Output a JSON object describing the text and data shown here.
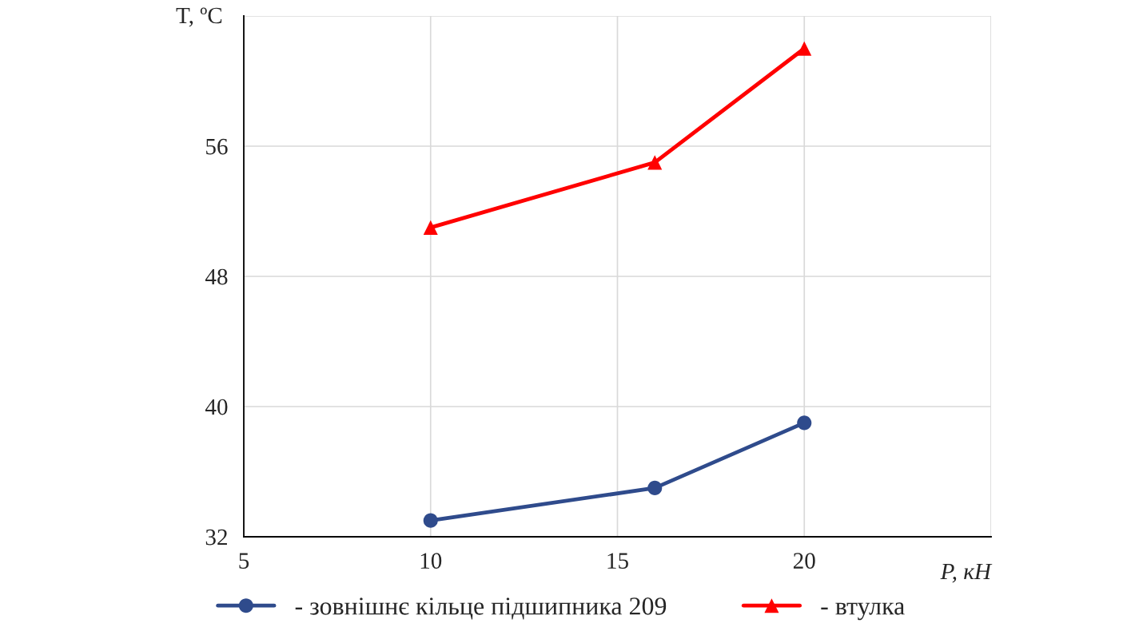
{
  "chart_data": {
    "type": "line",
    "xlabel": "P, кН",
    "ylabel": "T, ºC",
    "x": [
      10,
      16,
      20
    ],
    "series": [
      {
        "name": "- зовнішнє кільце підшипника 209",
        "color": "#2f4b8c",
        "values": [
          33,
          35,
          39
        ],
        "marker": "circle"
      },
      {
        "name": "- втулка",
        "color": "#ff0000",
        "values": [
          51,
          55,
          62
        ],
        "marker": "triangle"
      }
    ],
    "xlim": [
      5,
      25
    ],
    "xticks": [
      5,
      10,
      15,
      20,
      {
        "value": 25,
        "label": null
      }
    ],
    "ylim": [
      32,
      64
    ],
    "yticks": [
      32,
      40,
      48,
      56,
      {
        "value": 64,
        "label": null
      }
    ],
    "grid": true,
    "legend": "bottom",
    "line_style": "solid"
  }
}
